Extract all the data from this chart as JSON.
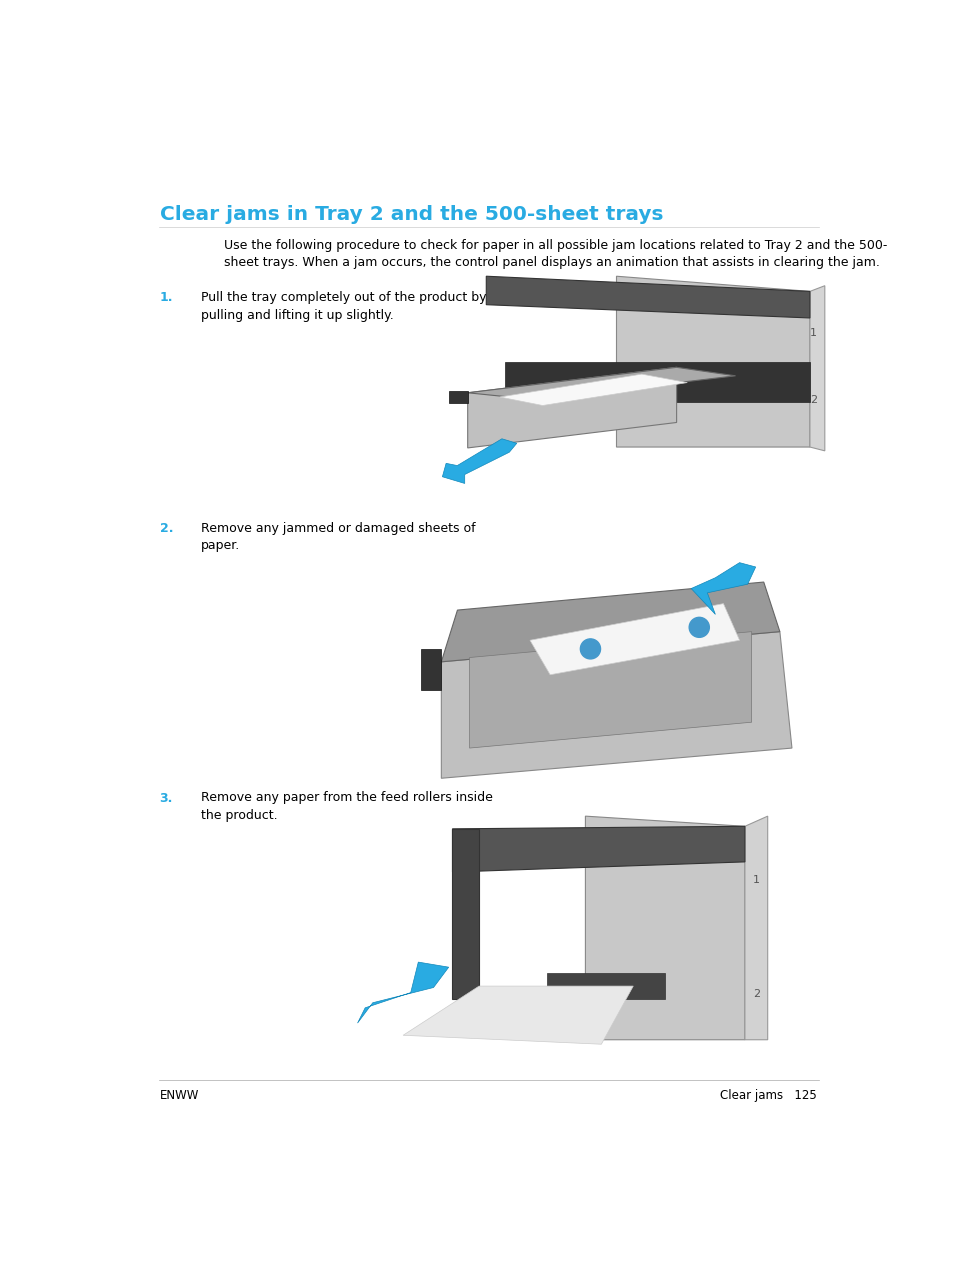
{
  "title": "Clear jams in Tray 2 and the 500-sheet trays",
  "title_color": "#29ABE2",
  "title_fontsize": 14.5,
  "bg_color": "#ffffff",
  "intro_text": "Use the following procedure to check for paper in all possible jam locations related to Tray 2 and the 500-\nsheet trays. When a jam occurs, the control panel displays an animation that assists in clearing the jam.",
  "intro_fontsize": 9.0,
  "steps": [
    {
      "number": "1.",
      "number_color": "#29ABE2",
      "text": "Pull the tray completely out of the product by\npulling and lifting it up slightly."
    },
    {
      "number": "2.",
      "number_color": "#29ABE2",
      "text": "Remove any jammed or damaged sheets of\npaper."
    },
    {
      "number": "3.",
      "number_color": "#29ABE2",
      "text": "Remove any paper from the feed rollers inside\nthe product."
    }
  ],
  "step_fontsize": 9.0,
  "footer_left": "ENWW",
  "footer_right": "Clear jams   125",
  "footer_fontsize": 8.5,
  "accent_color": "#29ABE2",
  "gray_dark": "#555555",
  "gray_mid": "#888888",
  "gray_light": "#bbbbbb",
  "gray_lighter": "#d8d8d8",
  "gray_lightest": "#eeeeee",
  "dark": "#333333",
  "black": "#222222"
}
